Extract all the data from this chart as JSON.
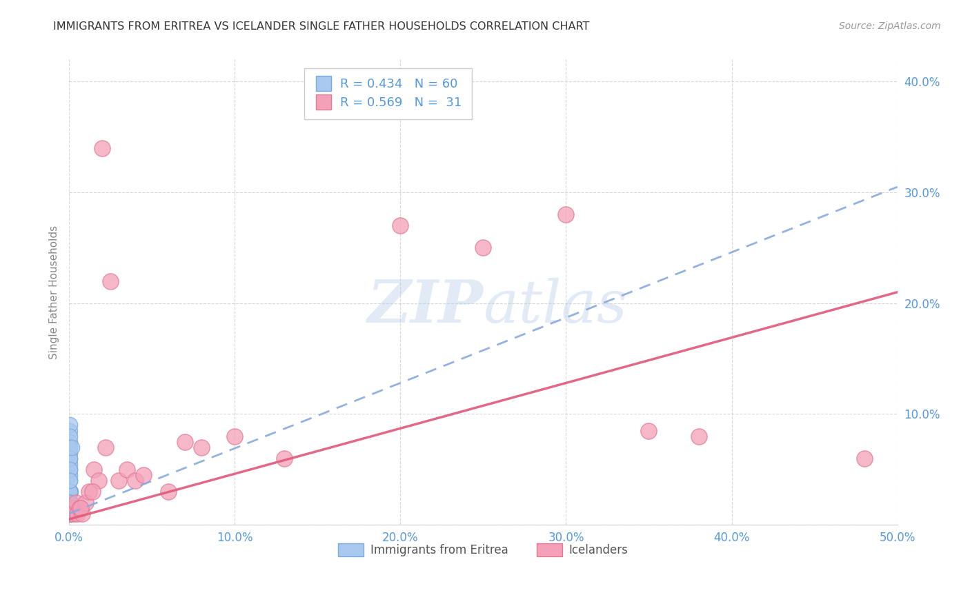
{
  "title": "IMMIGRANTS FROM ERITREA VS ICELANDER SINGLE FATHER HOUSEHOLDS CORRELATION CHART",
  "source": "Source: ZipAtlas.com",
  "ylabel": "Single Father Households",
  "xlim": [
    0.0,
    0.5
  ],
  "ylim": [
    0.0,
    0.42
  ],
  "blue_r": 0.434,
  "blue_n": 60,
  "pink_r": 0.569,
  "pink_n": 31,
  "blue_color": "#a8c8f0",
  "pink_color": "#f4a0b8",
  "blue_edge": "#7aaad8",
  "pink_edge": "#e07898",
  "trendline_blue_color": "#88aadd",
  "trendline_pink_color": "#e06080",
  "blue_x": [
    0.0002,
    0.0003,
    0.0004,
    0.0002,
    0.0005,
    0.0006,
    0.0004,
    0.0002,
    0.0003,
    0.0007,
    0.0002,
    0.0004,
    0.0005,
    0.0003,
    0.0006,
    0.0008,
    0.0004,
    0.0003,
    0.0002,
    0.0005,
    0.0003,
    0.0004,
    0.0002,
    0.0003,
    0.0004,
    0.0005,
    0.0003,
    0.0002,
    0.0004,
    0.0006,
    0.0002,
    0.0003,
    0.0004,
    0.0005,
    0.0002,
    0.0003,
    0.0004,
    0.0002,
    0.0003,
    0.0005,
    0.0002,
    0.0003,
    0.0004,
    0.0002,
    0.0003,
    0.0004,
    0.0005,
    0.0002,
    0.0003,
    0.0004,
    0.0003,
    0.0002,
    0.0004,
    0.0015,
    0.0003,
    0.0002,
    0.0004,
    0.0003,
    0.0005,
    0.0002
  ],
  "blue_y": [
    0.01,
    0.02,
    0.01,
    0.03,
    0.01,
    0.02,
    0.01,
    0.02,
    0.01,
    0.02,
    0.03,
    0.01,
    0.02,
    0.01,
    0.03,
    0.02,
    0.01,
    0.02,
    0.01,
    0.02,
    0.01,
    0.02,
    0.03,
    0.01,
    0.02,
    0.01,
    0.02,
    0.01,
    0.03,
    0.02,
    0.01,
    0.02,
    0.01,
    0.03,
    0.02,
    0.01,
    0.02,
    0.01,
    0.02,
    0.01,
    0.085,
    0.09,
    0.075,
    0.065,
    0.08,
    0.045,
    0.055,
    0.06,
    0.07,
    0.05,
    0.04,
    0.03,
    0.06,
    0.07,
    0.05,
    0.04,
    0.01,
    0.02,
    0.01,
    0.02
  ],
  "pink_x": [
    0.001,
    0.002,
    0.003,
    0.004,
    0.005,
    0.006,
    0.008,
    0.01,
    0.012,
    0.015,
    0.018,
    0.02,
    0.025,
    0.03,
    0.035,
    0.04,
    0.06,
    0.08,
    0.1,
    0.13,
    0.2,
    0.25,
    0.3,
    0.35,
    0.38,
    0.48,
    0.007,
    0.014,
    0.022,
    0.045,
    0.07
  ],
  "pink_y": [
    0.01,
    0.015,
    0.01,
    0.02,
    0.01,
    0.015,
    0.01,
    0.02,
    0.03,
    0.05,
    0.04,
    0.34,
    0.22,
    0.04,
    0.05,
    0.04,
    0.03,
    0.07,
    0.08,
    0.06,
    0.27,
    0.25,
    0.28,
    0.085,
    0.08,
    0.06,
    0.015,
    0.03,
    0.07,
    0.045,
    0.075
  ],
  "blue_line_x": [
    0.0,
    0.5
  ],
  "blue_line_y": [
    0.01,
    0.305
  ],
  "pink_line_x": [
    0.0,
    0.5
  ],
  "pink_line_y": [
    0.005,
    0.21
  ],
  "watermark_zip": "ZIP",
  "watermark_atlas": "atlas",
  "background_color": "#ffffff"
}
